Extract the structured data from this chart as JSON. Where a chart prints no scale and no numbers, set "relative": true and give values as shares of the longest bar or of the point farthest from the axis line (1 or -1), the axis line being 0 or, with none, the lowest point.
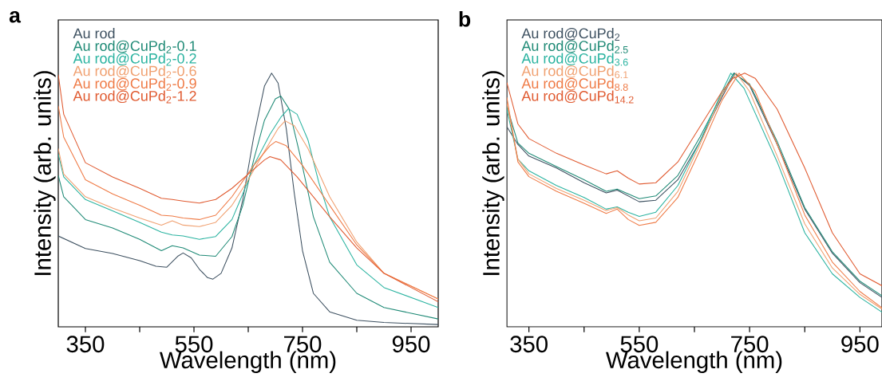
{
  "chart_data": [
    {
      "type": "line",
      "title": "a",
      "xlabel": "Wavelength (nm)",
      "ylabel": "Intensity (arb. units)",
      "relative": true,
      "legend": "top left",
      "xlim": [
        300,
        1000
      ],
      "xticks": [
        350,
        {
          "value": 450,
          "label": null
        },
        550,
        {
          "value": 650,
          "label": null
        },
        750,
        {
          "value": 850,
          "label": null
        },
        950
      ],
      "series": [
        {
          "name": "Au rod",
          "color": "#3d5060",
          "x": [
            300,
            350,
            400,
            450,
            480,
            500,
            520,
            530,
            545,
            560,
            575,
            585,
            600,
            620,
            640,
            660,
            680,
            693,
            705,
            720,
            735,
            750,
            770,
            800,
            850,
            900,
            1000
          ],
          "values": [
            0.358,
            0.309,
            0.289,
            0.261,
            0.239,
            0.235,
            0.278,
            0.291,
            0.272,
            0.227,
            0.194,
            0.188,
            0.211,
            0.311,
            0.502,
            0.748,
            0.95,
            1.0,
            0.961,
            0.782,
            0.524,
            0.3,
            0.132,
            0.059,
            0.026,
            0.017,
            0.009
          ]
        },
        {
          "name": "Au rod@CuPd$_{2}$-0.1",
          "color": "#1f8a76",
          "x": [
            300,
            310,
            350,
            400,
            450,
            490,
            510,
            530,
            560,
            590,
            620,
            640,
            660,
            680,
            700,
            710,
            725,
            745,
            770,
            800,
            850,
            900,
            1000
          ],
          "values": [
            0.597,
            0.513,
            0.423,
            0.39,
            0.345,
            0.3,
            0.32,
            0.311,
            0.283,
            0.278,
            0.356,
            0.479,
            0.658,
            0.815,
            0.899,
            0.91,
            0.86,
            0.681,
            0.434,
            0.255,
            0.132,
            0.076,
            0.031
          ]
        },
        {
          "name": "Au rod@CuPd$_{2}$-0.2",
          "color": "#2ab3a0",
          "x": [
            300,
            310,
            350,
            400,
            450,
            490,
            510,
            530,
            560,
            590,
            620,
            640,
            660,
            690,
            710,
            724,
            740,
            760,
            780,
            800,
            850,
            900,
            1000
          ],
          "values": [
            0.681,
            0.591,
            0.502,
            0.457,
            0.412,
            0.373,
            0.362,
            0.358,
            0.345,
            0.356,
            0.423,
            0.524,
            0.636,
            0.759,
            0.826,
            0.86,
            0.838,
            0.737,
            0.569,
            0.434,
            0.244,
            0.155,
            0.076
          ]
        },
        {
          "name": "Au rod@CuPd$_{2}$-0.6",
          "color": "#f0a070",
          "x": [
            300,
            310,
            350,
            400,
            450,
            490,
            510,
            530,
            560,
            590,
            620,
            650,
            680,
            705,
            718,
            735,
            760,
            800,
            850,
            900,
            1000
          ],
          "values": [
            0.703,
            0.602,
            0.513,
            0.468,
            0.429,
            0.401,
            0.418,
            0.401,
            0.395,
            0.412,
            0.479,
            0.58,
            0.692,
            0.782,
            0.812,
            0.793,
            0.703,
            0.513,
            0.334,
            0.211,
            0.11
          ]
        },
        {
          "name": "Au rod@CuPd$_{2}$-0.9",
          "color": "#ef7a45",
          "x": [
            300,
            310,
            350,
            400,
            450,
            490,
            510,
            530,
            560,
            590,
            620,
            660,
            690,
            701,
            720,
            750,
            800,
            850,
            900,
            1000
          ],
          "values": [
            0.871,
            0.748,
            0.58,
            0.524,
            0.479,
            0.44,
            0.437,
            0.429,
            0.423,
            0.44,
            0.513,
            0.636,
            0.714,
            0.731,
            0.714,
            0.636,
            0.479,
            0.323,
            0.211,
            0.11
          ]
        },
        {
          "name": "Au rod@CuPd$_{2}$-1.2",
          "color": "#e05a30",
          "x": [
            300,
            310,
            350,
            400,
            450,
            490,
            510,
            530,
            560,
            590,
            620,
            650,
            680,
            690,
            710,
            740,
            800,
            850,
            900,
            1000
          ],
          "values": [
            0.994,
            0.838,
            0.647,
            0.591,
            0.546,
            0.507,
            0.502,
            0.496,
            0.488,
            0.502,
            0.546,
            0.602,
            0.658,
            0.671,
            0.658,
            0.591,
            0.434,
            0.311,
            0.211,
            0.099
          ]
        }
      ]
    },
    {
      "type": "line",
      "title": "b",
      "xlabel": "Wavelength (nm)",
      "ylabel": "Intensity (arb. units)",
      "relative": true,
      "legend": "top left",
      "xlim": [
        310,
        990
      ],
      "xticks": [
        350,
        {
          "value": 450,
          "label": null
        },
        550,
        {
          "value": 650,
          "label": null
        },
        750,
        {
          "value": 850,
          "label": null
        },
        950
      ],
      "series": [
        {
          "name": "Au rod@CuPd$_{2}$",
          "color": "#3d5060",
          "x": [
            310,
            330,
            350,
            400,
            450,
            490,
            510,
            530,
            550,
            580,
            620,
            660,
            700,
            723,
            750,
            800,
            850,
            900,
            950,
            990
          ],
          "values": [
            0.789,
            0.719,
            0.673,
            0.626,
            0.568,
            0.528,
            0.539,
            0.516,
            0.493,
            0.499,
            0.58,
            0.731,
            0.905,
            1.0,
            0.951,
            0.719,
            0.464,
            0.29,
            0.174,
            0.116
          ]
        },
        {
          "name": "Au rod@CuPd$_{2.5}$",
          "color": "#1f8a76",
          "x": [
            310,
            330,
            350,
            400,
            450,
            490,
            510,
            530,
            550,
            580,
            620,
            660,
            700,
            721,
            750,
            800,
            850,
            900,
            950,
            990
          ],
          "values": [
            0.87,
            0.725,
            0.684,
            0.632,
            0.58,
            0.534,
            0.543,
            0.524,
            0.505,
            0.516,
            0.597,
            0.748,
            0.916,
            1.0,
            0.957,
            0.731,
            0.47,
            0.296,
            0.18,
            0.122
          ]
        },
        {
          "name": "Au rod@CuPd$_{3.6}$",
          "color": "#2ab3a0",
          "x": [
            310,
            330,
            350,
            400,
            450,
            490,
            510,
            530,
            550,
            580,
            620,
            660,
            700,
            716,
            740,
            800,
            850,
            900,
            950,
            990
          ],
          "values": [
            0.858,
            0.661,
            0.615,
            0.557,
            0.51,
            0.464,
            0.473,
            0.452,
            0.435,
            0.452,
            0.557,
            0.731,
            0.928,
            1.0,
            0.94,
            0.65,
            0.371,
            0.209,
            0.116,
            0.058
          ]
        },
        {
          "name": "Au rod@CuPd$_{6.1}$",
          "color": "#f0a070",
          "x": [
            310,
            330,
            350,
            400,
            450,
            490,
            510,
            530,
            550,
            580,
            620,
            660,
            700,
            726,
            750,
            800,
            850,
            900,
            950,
            990
          ],
          "values": [
            0.882,
            0.661,
            0.603,
            0.545,
            0.499,
            0.458,
            0.47,
            0.441,
            0.418,
            0.429,
            0.534,
            0.719,
            0.916,
            1.0,
            0.928,
            0.673,
            0.406,
            0.232,
            0.128,
            0.07
          ]
        },
        {
          "name": "Au rod@CuPd$_{8.8}$",
          "color": "#ef7a45",
          "x": [
            310,
            330,
            350,
            400,
            450,
            490,
            510,
            530,
            550,
            580,
            620,
            660,
            700,
            731,
            760,
            800,
            850,
            900,
            950,
            990
          ],
          "values": [
            0.905,
            0.65,
            0.592,
            0.534,
            0.487,
            0.447,
            0.464,
            0.423,
            0.4,
            0.412,
            0.51,
            0.696,
            0.893,
            1.0,
            0.928,
            0.719,
            0.441,
            0.255,
            0.139,
            0.075
          ]
        },
        {
          "name": "Au rod@CuPd$_{14.2}$",
          "color": "#e05a30",
          "x": [
            310,
            330,
            350,
            400,
            450,
            490,
            510,
            530,
            550,
            580,
            620,
            660,
            700,
            720,
            741,
            760,
            800,
            850,
            900,
            950,
            990
          ],
          "values": [
            0.963,
            0.8,
            0.742,
            0.684,
            0.638,
            0.603,
            0.615,
            0.586,
            0.563,
            0.568,
            0.65,
            0.789,
            0.928,
            0.98,
            1.0,
            0.98,
            0.858,
            0.626,
            0.371,
            0.209,
            0.162
          ]
        }
      ]
    }
  ]
}
